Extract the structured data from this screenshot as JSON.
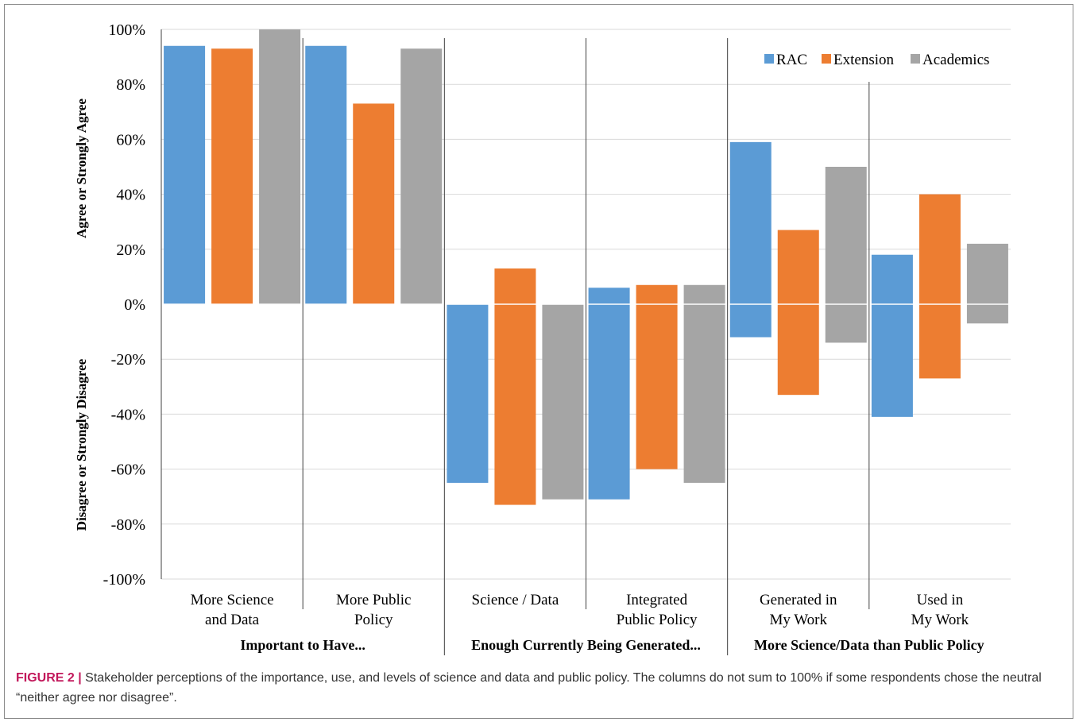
{
  "caption": {
    "label": "FIGURE 2 |",
    "text": "Stakeholder perceptions of the importance, use, and levels of science and data and public policy. The columns do not sum to 100% if some respondents chose the neutral “neither agree nor disagree”."
  },
  "chart_data": {
    "type": "bar",
    "title": "",
    "ylabel_top": "Agree or Strongly Agree",
    "ylabel_bottom": "Disagree or Strongly Disagree",
    "ylim": [
      -100,
      100
    ],
    "yticks": [
      100,
      80,
      60,
      40,
      20,
      0,
      -20,
      -40,
      -60,
      -80,
      -100
    ],
    "ytick_labels": [
      "100%",
      "80%",
      "60%",
      "40%",
      "20%",
      "0%",
      "-20%",
      "-40%",
      "-60%",
      "-80%",
      "-100%"
    ],
    "grid": true,
    "legend_position": "top-right",
    "legend": [
      "RAC",
      "Extension",
      "Academics"
    ],
    "colors": {
      "RAC": "#5b9bd5",
      "Extension": "#ed7d31",
      "Academics": "#a5a5a5"
    },
    "groups": [
      "Important to Have...",
      "Enough Currently Being Generated...",
      "More Science/Data than Public Policy"
    ],
    "categories": [
      {
        "lines": [
          "More Science",
          "and Data"
        ],
        "group": 0
      },
      {
        "lines": [
          "More Public",
          "Policy"
        ],
        "group": 0
      },
      {
        "lines": [
          "Science / Data"
        ],
        "group": 1
      },
      {
        "lines": [
          "Integrated",
          "Public Policy"
        ],
        "group": 1
      },
      {
        "lines": [
          "Generated in",
          "My Work"
        ],
        "group": 2
      },
      {
        "lines": [
          "Used in",
          "My Work"
        ],
        "group": 2
      }
    ],
    "series": [
      {
        "name": "RAC",
        "agree": [
          94,
          94,
          0,
          6,
          59,
          18
        ],
        "disagree": [
          0,
          0,
          -65,
          -71,
          -12,
          -41
        ]
      },
      {
        "name": "Extension",
        "agree": [
          93,
          73,
          13,
          7,
          27,
          40
        ],
        "disagree": [
          0,
          0,
          -73,
          -60,
          -33,
          -27
        ]
      },
      {
        "name": "Academics",
        "agree": [
          100,
          93,
          0,
          7,
          50,
          22
        ],
        "disagree": [
          0,
          0,
          -71,
          -65,
          -14,
          -7
        ]
      }
    ]
  }
}
